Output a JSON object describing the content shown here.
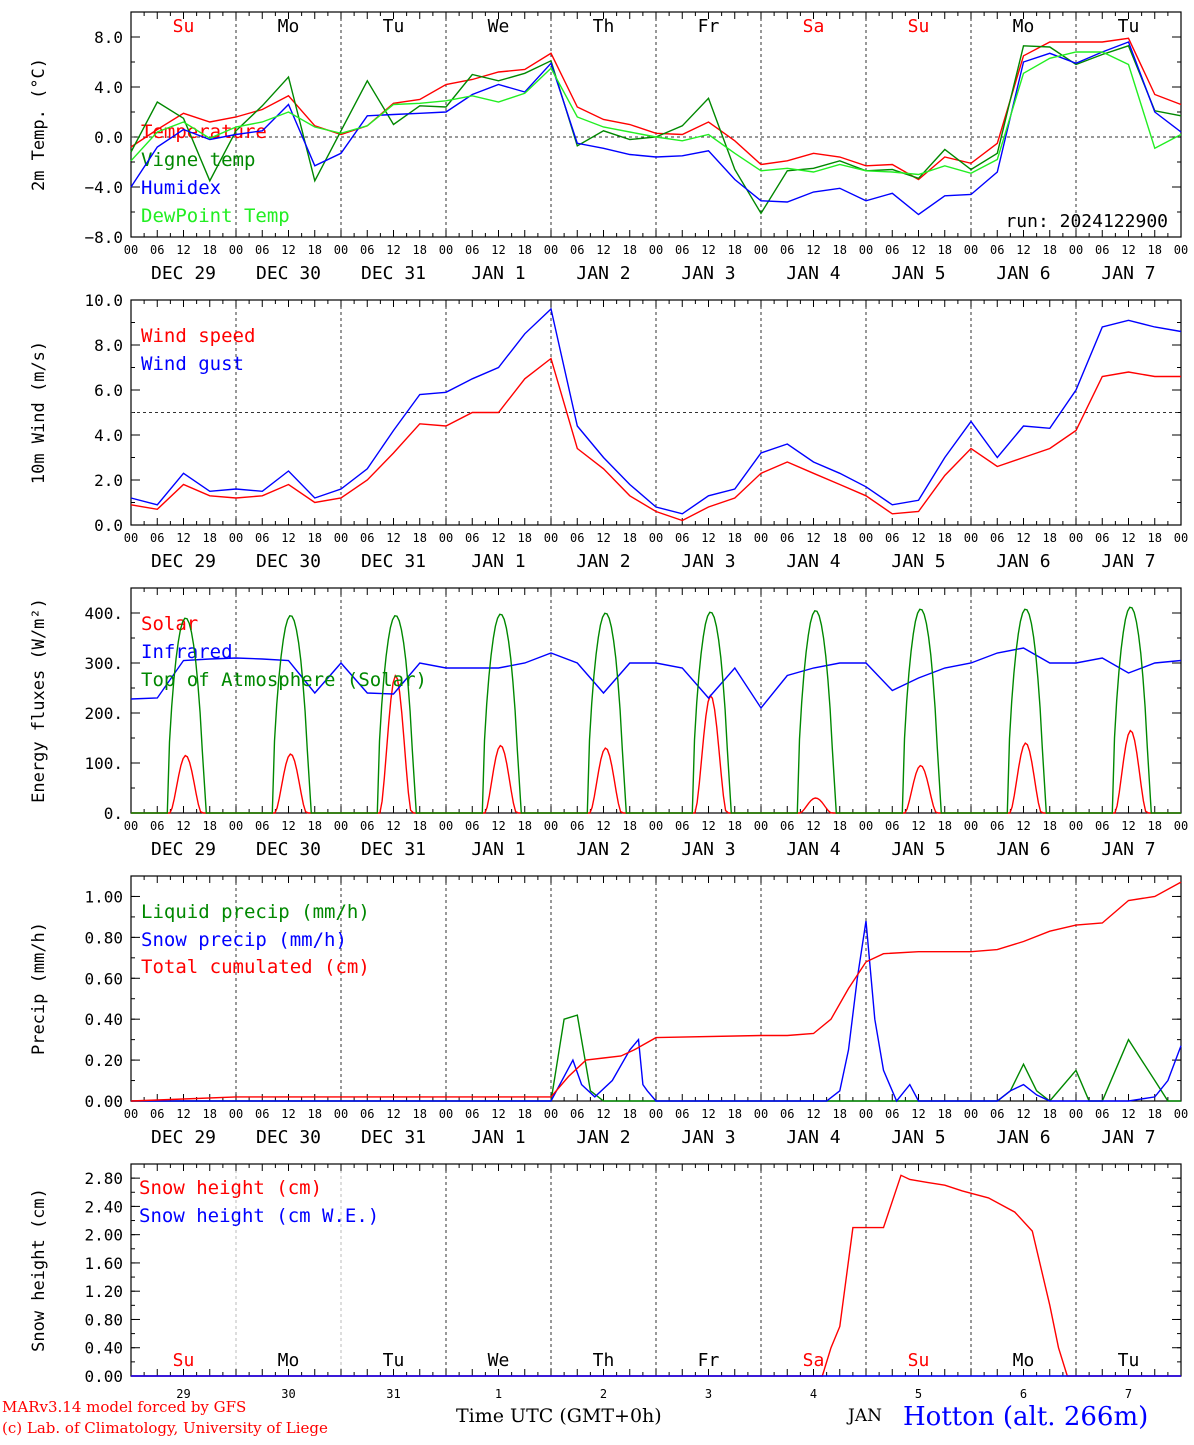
{
  "run_label": "run: 2024122900",
  "days": [
    {
      "weekday": "Su",
      "date": "DEC 29",
      "num": "29",
      "weekend": true
    },
    {
      "weekday": "Mo",
      "date": "DEC 30",
      "num": "30",
      "weekend": false
    },
    {
      "weekday": "Tu",
      "date": "DEC 31",
      "num": "31",
      "weekend": false
    },
    {
      "weekday": "We",
      "date": "JAN  1",
      "num": "1",
      "weekend": false
    },
    {
      "weekday": "Th",
      "date": "JAN  2",
      "num": "2",
      "weekend": false
    },
    {
      "weekday": "Fr",
      "date": "JAN  3",
      "num": "3",
      "weekend": false
    },
    {
      "weekday": "Sa",
      "date": "JAN  4",
      "num": "4",
      "weekend": true
    },
    {
      "weekday": "Su",
      "date": "JAN  5",
      "num": "5",
      "weekend": true
    },
    {
      "weekday": "Mo",
      "date": "JAN  6",
      "num": "6",
      "weekend": false
    },
    {
      "weekday": "Tu",
      "date": "JAN  7",
      "num": "7",
      "weekend": false
    }
  ],
  "hour_ticks": [
    "00",
    "06",
    "12",
    "18"
  ],
  "final_hour": "00",
  "colors": {
    "red": "#ff0000",
    "green": "#008800",
    "blue": "#0000ff",
    "lightgreen": "#22ee22",
    "weekend": "#ff0000",
    "axis": "#000000"
  },
  "footer": {
    "model_line": "MARv3.14 model forced by GFS",
    "lab_line": "(c) Lab. of Climatology, University of Liege",
    "time_label": "Time UTC (GMT+0h)",
    "month_label": "JAN",
    "station": "Hotton (alt. 266m)"
  },
  "chart_data": [
    {
      "type": "line",
      "ylabel": "2m Temp. (°C)",
      "ylim": [
        -8,
        10
      ],
      "yticks": [
        "8.0",
        "4.0",
        "0.0",
        "−4.0",
        "−8.0"
      ],
      "ytick_values": [
        8,
        4,
        0,
        -4,
        -8
      ],
      "reference_line": 0,
      "legend_position": "left",
      "x_hours": [
        0,
        6,
        12,
        18,
        24,
        30,
        36,
        42,
        48,
        54,
        60,
        66,
        72,
        78,
        84,
        90,
        96,
        102,
        108,
        114,
        120,
        126,
        132,
        138,
        144,
        150,
        156,
        162,
        168,
        174,
        180,
        186,
        192,
        198,
        204,
        210,
        216,
        222,
        228,
        234,
        240
      ],
      "series": [
        {
          "name": "Temperature",
          "color": "#ff0000",
          "values": [
            -0.8,
            0.6,
            1.9,
            1.2,
            1.6,
            2.2,
            3.3,
            0.9,
            0.2,
            0.9,
            2.7,
            3.0,
            4.2,
            4.6,
            5.2,
            5.4,
            6.7,
            2.4,
            1.4,
            1.0,
            0.3,
            0.2,
            1.2,
            -0.3,
            -2.2,
            -1.9,
            -1.3,
            -1.6,
            -2.3,
            -2.2,
            -3.4,
            -1.6,
            -2.1,
            -0.5,
            6.5,
            7.6,
            7.6,
            7.6,
            7.9,
            3.4,
            2.6
          ]
        },
        {
          "name": "Vigne temp",
          "color": "#008800",
          "values": [
            -1.2,
            2.8,
            1.5,
            -3.5,
            0.5,
            2.5,
            4.8,
            -3.5,
            0.5,
            4.5,
            1.0,
            2.5,
            2.4,
            5.0,
            4.5,
            5.1,
            6.1,
            -0.7,
            0.5,
            -0.2,
            0.0,
            0.9,
            3.1,
            -2.6,
            -6.1,
            -2.7,
            -2.5,
            -1.9,
            -2.7,
            -2.6,
            -3.3,
            -1.0,
            -2.6,
            -1.3,
            7.3,
            7.2,
            5.8,
            6.6,
            7.3,
            2.1,
            1.7
          ]
        },
        {
          "name": "Humidex",
          "color": "#0000ff",
          "values": [
            -4.0,
            -0.8,
            0.6,
            -0.2,
            0.2,
            0.5,
            2.6,
            -2.3,
            -1.3,
            1.7,
            1.8,
            1.9,
            2.0,
            3.4,
            4.2,
            3.6,
            5.9,
            -0.5,
            -0.9,
            -1.4,
            -1.6,
            -1.5,
            -1.1,
            -3.4,
            -5.1,
            -5.2,
            -4.4,
            -4.1,
            -5.1,
            -4.5,
            -6.2,
            -4.7,
            -4.6,
            -2.8,
            6.0,
            6.7,
            5.9,
            6.8,
            7.6,
            2.0,
            0.4
          ]
        },
        {
          "name": "DewPoint Temp",
          "color": "#22ee22",
          "values": [
            -1.9,
            0.4,
            1.2,
            -0.1,
            0.8,
            1.2,
            2.0,
            0.8,
            0.3,
            0.9,
            2.6,
            2.7,
            2.9,
            3.3,
            2.8,
            3.5,
            5.5,
            1.6,
            0.8,
            0.4,
            0.0,
            -0.3,
            0.2,
            -1.3,
            -2.7,
            -2.5,
            -2.8,
            -2.2,
            -2.7,
            -2.8,
            -3.0,
            -2.3,
            -2.9,
            -1.8,
            5.1,
            6.3,
            6.8,
            6.8,
            5.8,
            -0.9,
            0.2
          ]
        }
      ]
    },
    {
      "type": "line",
      "ylabel": "10m Wind (m/s)",
      "ylim": [
        0,
        10
      ],
      "yticks": [
        "10.0",
        "8.0",
        "6.0",
        "4.0",
        "2.0",
        "0.0"
      ],
      "ytick_values": [
        10,
        8,
        6,
        4,
        2,
        0
      ],
      "reference_line": 5,
      "legend_position": "top-left",
      "x_hours": [
        0,
        6,
        12,
        18,
        24,
        30,
        36,
        42,
        48,
        54,
        60,
        66,
        72,
        78,
        84,
        90,
        96,
        102,
        108,
        114,
        120,
        126,
        132,
        138,
        144,
        150,
        156,
        162,
        168,
        174,
        180,
        186,
        192,
        198,
        204,
        210,
        216,
        222,
        228,
        234,
        240
      ],
      "series": [
        {
          "name": "Wind speed",
          "color": "#ff0000",
          "values": [
            0.9,
            0.7,
            1.8,
            1.3,
            1.2,
            1.3,
            1.8,
            1.0,
            1.2,
            2.0,
            3.2,
            4.5,
            4.4,
            5.0,
            5.0,
            6.5,
            7.4,
            3.4,
            2.5,
            1.3,
            0.6,
            0.2,
            0.8,
            1.2,
            2.3,
            2.8,
            2.3,
            1.8,
            1.3,
            0.5,
            0.6,
            2.2,
            3.4,
            2.6,
            3.0,
            3.4,
            4.2,
            6.6,
            6.8,
            6.6,
            6.6
          ]
        },
        {
          "name": "Wind gust",
          "color": "#0000ff",
          "values": [
            1.2,
            0.9,
            2.3,
            1.5,
            1.6,
            1.5,
            2.4,
            1.2,
            1.6,
            2.5,
            4.2,
            5.8,
            5.9,
            6.5,
            7.0,
            8.5,
            9.6,
            4.4,
            3.0,
            1.8,
            0.8,
            0.5,
            1.3,
            1.6,
            3.2,
            3.6,
            2.8,
            2.3,
            1.7,
            0.9,
            1.1,
            3.0,
            4.6,
            3.0,
            4.4,
            4.3,
            6.0,
            8.8,
            9.1,
            8.8,
            8.6
          ]
        }
      ]
    },
    {
      "type": "line",
      "ylabel": "Energy fluxes (W/m²)",
      "ylim": [
        0,
        450
      ],
      "yticks": [
        "400.",
        "300.",
        "200.",
        "100.",
        "0."
      ],
      "ytick_values": [
        400,
        300,
        200,
        100,
        0
      ],
      "legend_position": "top-left",
      "series": [
        {
          "name": "Solar",
          "color": "#ff0000",
          "peaks": [
            115,
            118,
            275,
            135,
            130,
            235,
            30,
            95,
            140,
            165
          ]
        },
        {
          "name": "Infrared",
          "color": "#0000ff",
          "x_hours": [
            0,
            6,
            12,
            18,
            24,
            30,
            36,
            42,
            48,
            54,
            60,
            66,
            72,
            78,
            84,
            90,
            96,
            102,
            108,
            114,
            120,
            126,
            132,
            138,
            144,
            150,
            156,
            162,
            168,
            174,
            180,
            186,
            192,
            198,
            204,
            210,
            216,
            222,
            228,
            234,
            240
          ],
          "values": [
            228,
            230,
            305,
            308,
            310,
            308,
            305,
            240,
            300,
            240,
            238,
            300,
            290,
            290,
            290,
            300,
            320,
            300,
            240,
            300,
            300,
            290,
            230,
            290,
            210,
            275,
            290,
            300,
            300,
            245,
            270,
            290,
            300,
            320,
            330,
            300,
            300,
            310,
            280,
            300,
            305
          ]
        },
        {
          "name": "Top of Atmosphere (Solar)",
          "color": "#008800",
          "peaks": [
            390,
            395,
            395,
            398,
            400,
            402,
            405,
            408,
            408,
            412
          ]
        }
      ]
    },
    {
      "type": "line",
      "ylabel": "Precip (mm/h)",
      "ylim": [
        0,
        1.1
      ],
      "yticks": [
        "1.00",
        "0.80",
        "0.60",
        "0.40",
        "0.20",
        "0.00"
      ],
      "ytick_values": [
        1.0,
        0.8,
        0.6,
        0.4,
        0.2,
        0.0
      ],
      "legend_position": "top-left",
      "series": [
        {
          "name": "Liquid precip (mm/h)",
          "color": "#008800",
          "x_hours": [
            0,
            96,
            99,
            102,
            105,
            108,
            198,
            201,
            204,
            207,
            210,
            216,
            219,
            222,
            225,
            228,
            231,
            234,
            237,
            240
          ],
          "values": [
            0,
            0,
            0.4,
            0.42,
            0.05,
            0,
            0,
            0.05,
            0.18,
            0.05,
            0,
            0.15,
            0,
            0,
            0.15,
            0.3,
            0.2,
            0.1,
            0,
            0
          ]
        },
        {
          "name": "Snow precip (mm/h)",
          "color": "#0000ff",
          "x_hours": [
            0,
            96,
            101,
            103,
            106,
            110,
            114,
            116,
            117,
            118,
            120,
            159,
            162,
            164,
            166,
            168,
            170,
            172,
            175,
            178,
            180,
            198,
            201,
            204,
            207,
            210,
            216,
            228,
            234,
            237,
            240
          ],
          "values": [
            0,
            0,
            0.2,
            0.08,
            0.02,
            0.1,
            0.25,
            0.3,
            0.08,
            0.05,
            0,
            0,
            0.05,
            0.25,
            0.6,
            0.88,
            0.4,
            0.15,
            0,
            0.08,
            0,
            0,
            0.05,
            0.08,
            0.03,
            0,
            0,
            0,
            0.02,
            0.1,
            0.27
          ]
        },
        {
          "name": "Total cumulated (cm)",
          "color": "#ff0000",
          "x_hours": [
            0,
            12,
            24,
            48,
            72,
            90,
            96,
            100,
            104,
            108,
            112,
            115,
            120,
            144,
            150,
            156,
            160,
            164,
            168,
            172,
            180,
            192,
            198,
            204,
            210,
            216,
            222,
            228,
            234,
            240
          ],
          "values": [
            0,
            0.01,
            0.02,
            0.02,
            0.02,
            0.02,
            0.02,
            0.12,
            0.2,
            0.21,
            0.22,
            0.25,
            0.31,
            0.32,
            0.32,
            0.33,
            0.4,
            0.55,
            0.68,
            0.72,
            0.73,
            0.73,
            0.74,
            0.78,
            0.83,
            0.86,
            0.87,
            0.98,
            1.0,
            1.07
          ]
        }
      ]
    },
    {
      "type": "line",
      "ylabel": "Snow height (cm)",
      "ylim": [
        0,
        3.0
      ],
      "yticks": [
        "2.80",
        "2.40",
        "2.00",
        "1.60",
        "1.20",
        "0.80",
        "0.40",
        "0.00"
      ],
      "ytick_values": [
        2.8,
        2.4,
        2.0,
        1.6,
        1.2,
        0.8,
        0.4,
        0.0
      ],
      "legend_position": "top-left",
      "series": [
        {
          "name": "Snow height (cm)",
          "color": "#ff0000",
          "x_hours": [
            0,
            158,
            160,
            162,
            165,
            166,
            167,
            172,
            176,
            178,
            182,
            186,
            190,
            196,
            202,
            206,
            210,
            212,
            214,
            216,
            218,
            240
          ],
          "values": [
            0,
            0,
            0.4,
            0.7,
            2.1,
            2.1,
            2.1,
            2.1,
            2.84,
            2.78,
            2.74,
            2.7,
            2.62,
            2.52,
            2.32,
            2.05,
            1.0,
            0.4,
            0,
            0,
            0,
            0
          ]
        },
        {
          "name": "Snow height (cm W.E.)",
          "color": "#0000ff",
          "x_hours": [
            0,
            240
          ],
          "values": [
            0,
            0
          ]
        }
      ]
    }
  ]
}
